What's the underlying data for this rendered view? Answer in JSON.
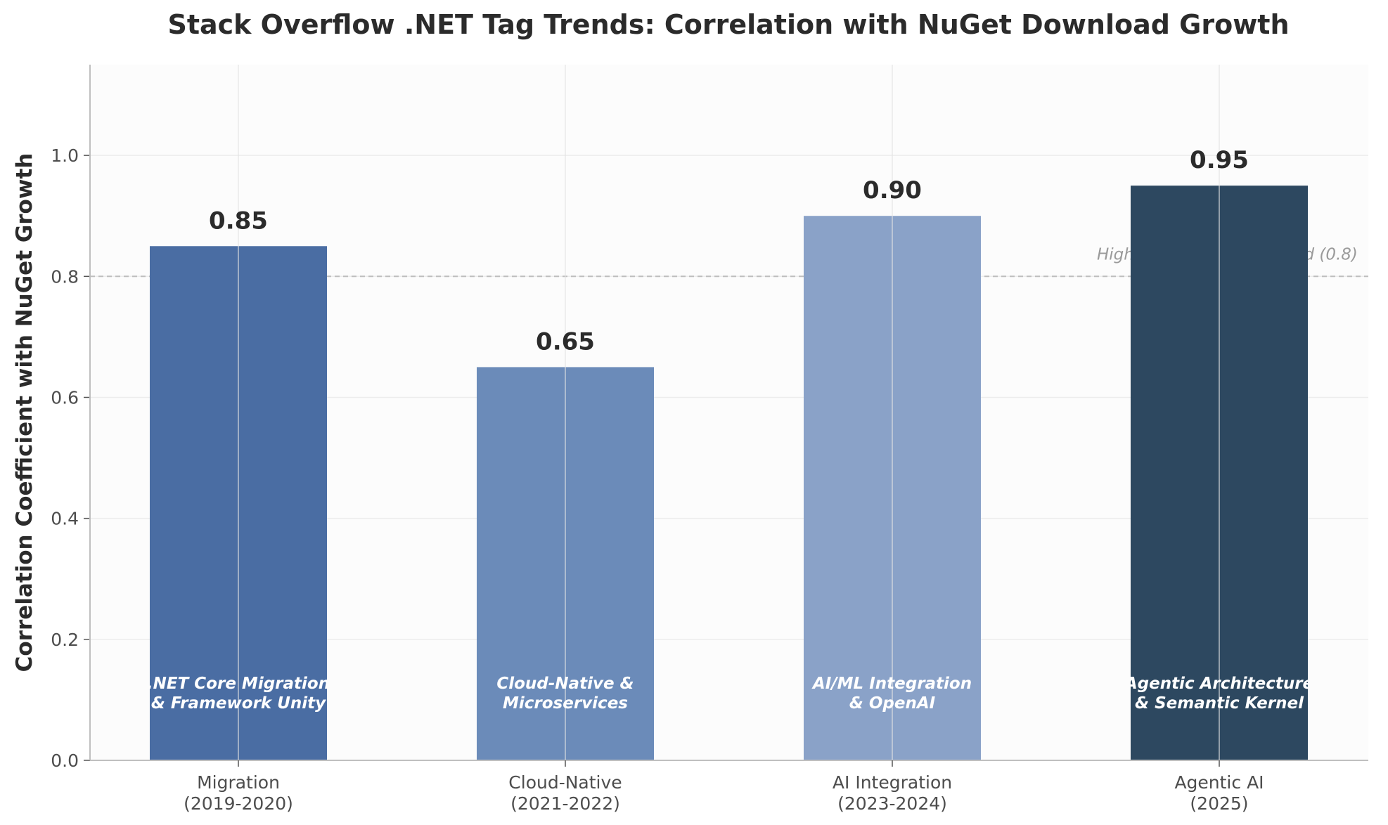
{
  "chart_data": {
    "type": "bar",
    "title": "Stack Overflow .NET Tag Trends: Correlation with NuGet Download Growth",
    "xlabel": "",
    "ylabel": "Correlation Coefficient with NuGet Growth",
    "ylim": [
      0,
      1.15
    ],
    "yticks": [
      "0.0",
      "0.2",
      "0.4",
      "0.6",
      "0.8",
      "1.0"
    ],
    "grid": true,
    "categories": [
      [
        "Migration",
        "(2019-2020)"
      ],
      [
        "Cloud-Native",
        "(2021-2022)"
      ],
      [
        "AI Integration",
        "(2023-2024)"
      ],
      [
        "Agentic AI",
        "(2025)"
      ]
    ],
    "values": [
      0.85,
      0.65,
      0.9,
      0.95
    ],
    "value_labels": [
      "0.85",
      "0.65",
      "0.90",
      "0.95"
    ],
    "bar_annotations": [
      [
        ".NET Core Migration",
        "& Framework Unity"
      ],
      [
        "Cloud-Native &",
        "Microservices"
      ],
      [
        "AI/ML Integration",
        "& OpenAI"
      ],
      [
        "Agentic Architecture",
        "& Semantic Kernel"
      ]
    ],
    "colors": [
      "#4a6da3",
      "#6b8bb9",
      "#8aa2c8",
      "#2d4860"
    ],
    "threshold": {
      "value": 0.8,
      "label": "High Correlation Threshold (0.8)",
      "style": "dashed",
      "color": "#bdbdbd"
    }
  }
}
